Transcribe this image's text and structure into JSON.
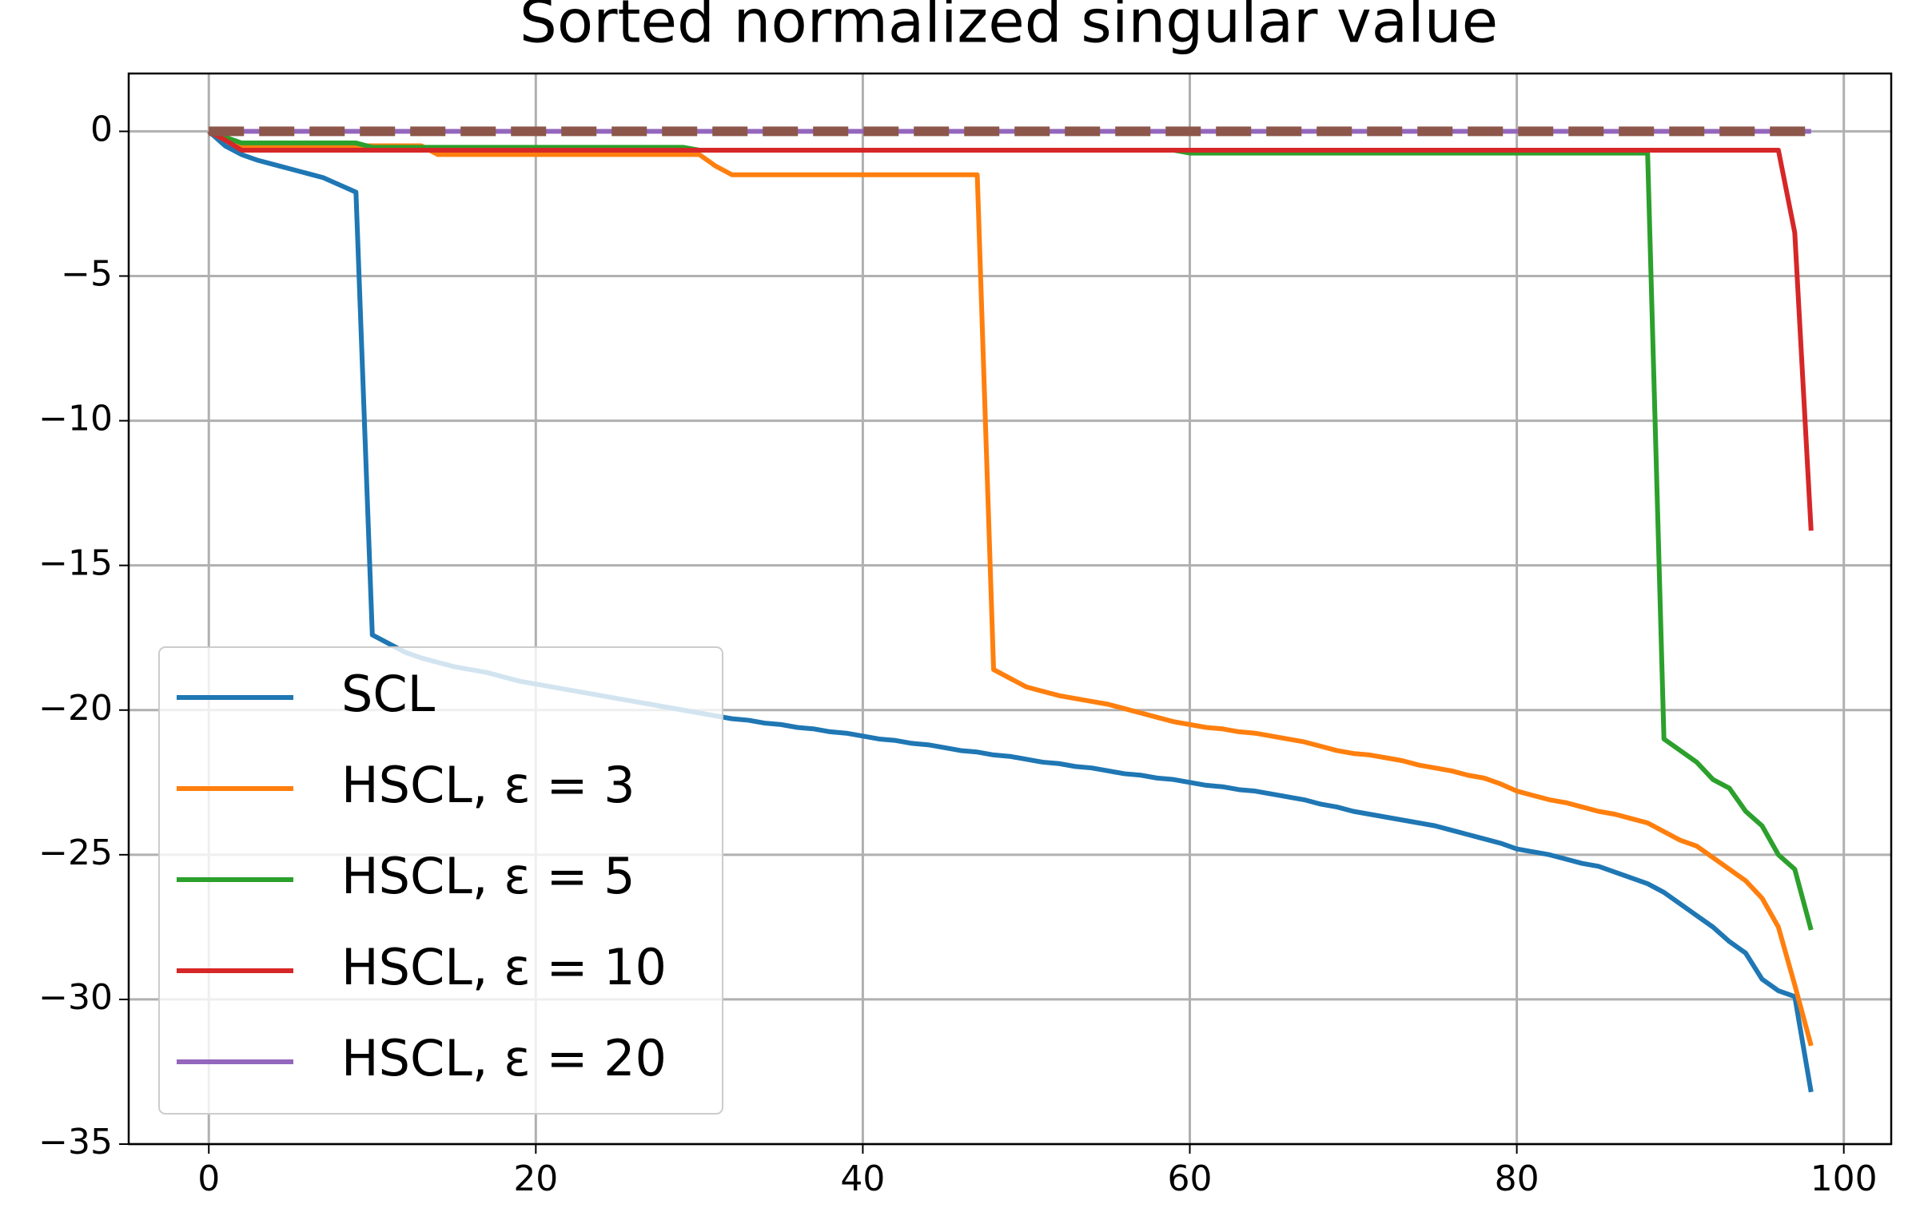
{
  "chart_data": {
    "type": "line",
    "title": "Sorted normalized singular value",
    "x": [
      0,
      1,
      2,
      3,
      4,
      5,
      6,
      7,
      8,
      9,
      10,
      11,
      12,
      13,
      14,
      15,
      16,
      17,
      18,
      19,
      20,
      21,
      22,
      23,
      24,
      25,
      26,
      27,
      28,
      29,
      30,
      31,
      32,
      33,
      34,
      35,
      36,
      37,
      38,
      39,
      40,
      41,
      42,
      43,
      44,
      45,
      46,
      47,
      48,
      49,
      50,
      51,
      52,
      53,
      54,
      55,
      56,
      57,
      58,
      59,
      60,
      61,
      62,
      63,
      64,
      65,
      66,
      67,
      68,
      69,
      70,
      71,
      72,
      73,
      74,
      75,
      76,
      77,
      78,
      79,
      80,
      81,
      82,
      83,
      84,
      85,
      86,
      87,
      88,
      89,
      90,
      91,
      92,
      93,
      94,
      95,
      96,
      97,
      98
    ],
    "series": [
      {
        "name": "SCL",
        "color": "#1f77b4",
        "values": [
          0,
          -0.5,
          -0.8,
          -1.0,
          -1.15,
          -1.3,
          -1.45,
          -1.6,
          -1.85,
          -2.1,
          -17.4,
          -17.7,
          -18.0,
          -18.2,
          -18.35,
          -18.5,
          -18.6,
          -18.7,
          -18.85,
          -19.0,
          -19.1,
          -19.2,
          -19.3,
          -19.4,
          -19.5,
          -19.6,
          -19.7,
          -19.8,
          -19.9,
          -20.0,
          -20.1,
          -20.2,
          -20.3,
          -20.35,
          -20.45,
          -20.5,
          -20.6,
          -20.65,
          -20.75,
          -20.8,
          -20.9,
          -21.0,
          -21.05,
          -21.15,
          -21.2,
          -21.3,
          -21.4,
          -21.45,
          -21.55,
          -21.6,
          -21.7,
          -21.8,
          -21.85,
          -21.95,
          -22.0,
          -22.1,
          -22.2,
          -22.25,
          -22.35,
          -22.4,
          -22.5,
          -22.6,
          -22.65,
          -22.75,
          -22.8,
          -22.9,
          -23.0,
          -23.1,
          -23.25,
          -23.35,
          -23.5,
          -23.6,
          -23.7,
          -23.8,
          -23.9,
          -24.0,
          -24.15,
          -24.3,
          -24.45,
          -24.6,
          -24.8,
          -24.9,
          -25.0,
          -25.15,
          -25.3,
          -25.4,
          -25.6,
          -25.8,
          -26.0,
          -26.3,
          -26.7,
          -27.1,
          -27.5,
          -28.0,
          -28.4,
          -29.3,
          -29.7,
          -29.9,
          -33.2
        ]
      },
      {
        "name": "HSCL, ε = 3",
        "color": "#ff7f0e",
        "values": [
          0,
          -0.3,
          -0.5,
          -0.5,
          -0.5,
          -0.5,
          -0.5,
          -0.5,
          -0.5,
          -0.5,
          -0.5,
          -0.5,
          -0.5,
          -0.5,
          -0.8,
          -0.8,
          -0.8,
          -0.8,
          -0.8,
          -0.8,
          -0.8,
          -0.8,
          -0.8,
          -0.8,
          -0.8,
          -0.8,
          -0.8,
          -0.8,
          -0.8,
          -0.8,
          -0.8,
          -1.2,
          -1.5,
          -1.5,
          -1.5,
          -1.5,
          -1.5,
          -1.5,
          -1.5,
          -1.5,
          -1.5,
          -1.5,
          -1.5,
          -1.5,
          -1.5,
          -1.5,
          -1.5,
          -1.5,
          -18.6,
          -18.9,
          -19.2,
          -19.35,
          -19.5,
          -19.6,
          -19.7,
          -19.8,
          -19.95,
          -20.1,
          -20.25,
          -20.4,
          -20.5,
          -20.6,
          -20.65,
          -20.75,
          -20.8,
          -20.9,
          -21.0,
          -21.1,
          -21.25,
          -21.4,
          -21.5,
          -21.55,
          -21.65,
          -21.75,
          -21.9,
          -22.0,
          -22.1,
          -22.25,
          -22.35,
          -22.55,
          -22.8,
          -22.95,
          -23.1,
          -23.2,
          -23.35,
          -23.5,
          -23.6,
          -23.75,
          -23.9,
          -24.2,
          -24.5,
          -24.7,
          -25.1,
          -25.5,
          -25.9,
          -26.5,
          -27.5,
          -29.5,
          -31.6
        ]
      },
      {
        "name": "HSCL, ε = 5",
        "color": "#2ca02c",
        "values": [
          0,
          -0.2,
          -0.4,
          -0.4,
          -0.4,
          -0.4,
          -0.4,
          -0.4,
          -0.4,
          -0.4,
          -0.55,
          -0.55,
          -0.55,
          -0.55,
          -0.55,
          -0.55,
          -0.55,
          -0.55,
          -0.55,
          -0.55,
          -0.55,
          -0.55,
          -0.55,
          -0.55,
          -0.55,
          -0.55,
          -0.55,
          -0.55,
          -0.55,
          -0.55,
          -0.65,
          -0.65,
          -0.65,
          -0.65,
          -0.65,
          -0.65,
          -0.65,
          -0.65,
          -0.65,
          -0.65,
          -0.65,
          -0.65,
          -0.65,
          -0.65,
          -0.65,
          -0.65,
          -0.65,
          -0.65,
          -0.65,
          -0.65,
          -0.65,
          -0.65,
          -0.65,
          -0.65,
          -0.65,
          -0.65,
          -0.65,
          -0.65,
          -0.65,
          -0.65,
          -0.75,
          -0.75,
          -0.75,
          -0.75,
          -0.75,
          -0.75,
          -0.75,
          -0.75,
          -0.75,
          -0.75,
          -0.75,
          -0.75,
          -0.75,
          -0.75,
          -0.75,
          -0.75,
          -0.75,
          -0.75,
          -0.75,
          -0.75,
          -0.75,
          -0.75,
          -0.75,
          -0.75,
          -0.75,
          -0.75,
          -0.75,
          -0.75,
          -0.75,
          -21.0,
          -21.4,
          -21.8,
          -22.4,
          -22.7,
          -23.5,
          -24.0,
          -25.0,
          -25.5,
          -27.6
        ]
      },
      {
        "name": "HSCL, ε = 10",
        "color": "#d62728",
        "values": [
          0,
          -0.3,
          -0.65,
          -0.65,
          -0.65,
          -0.65,
          -0.65,
          -0.65,
          -0.65,
          -0.65,
          -0.65,
          -0.65,
          -0.65,
          -0.65,
          -0.65,
          -0.65,
          -0.65,
          -0.65,
          -0.65,
          -0.65,
          -0.65,
          -0.65,
          -0.65,
          -0.65,
          -0.65,
          -0.65,
          -0.65,
          -0.65,
          -0.65,
          -0.65,
          -0.65,
          -0.65,
          -0.65,
          -0.65,
          -0.65,
          -0.65,
          -0.65,
          -0.65,
          -0.65,
          -0.65,
          -0.65,
          -0.65,
          -0.65,
          -0.65,
          -0.65,
          -0.65,
          -0.65,
          -0.65,
          -0.65,
          -0.65,
          -0.65,
          -0.65,
          -0.65,
          -0.65,
          -0.65,
          -0.65,
          -0.65,
          -0.65,
          -0.65,
          -0.65,
          -0.65,
          -0.65,
          -0.65,
          -0.65,
          -0.65,
          -0.65,
          -0.65,
          -0.65,
          -0.65,
          -0.65,
          -0.65,
          -0.65,
          -0.65,
          -0.65,
          -0.65,
          -0.65,
          -0.65,
          -0.65,
          -0.65,
          -0.65,
          -0.65,
          -0.65,
          -0.65,
          -0.65,
          -0.65,
          -0.65,
          -0.65,
          -0.65,
          -0.65,
          -0.65,
          -0.65,
          -0.65,
          -0.65,
          -0.65,
          -0.65,
          -0.65,
          -0.65,
          -3.5,
          -13.8
        ]
      },
      {
        "name": "HSCL, ε = 20",
        "color": "#9467bd",
        "values": [
          0,
          0,
          0,
          0,
          0,
          0,
          0,
          0,
          0,
          0,
          0,
          0,
          0,
          0,
          0,
          0,
          0,
          0,
          0,
          0,
          0,
          0,
          0,
          0,
          0,
          0,
          0,
          0,
          0,
          0,
          0,
          0,
          0,
          0,
          0,
          0,
          0,
          0,
          0,
          0,
          0,
          0,
          0,
          0,
          0,
          0,
          0,
          0,
          0,
          0,
          0,
          0,
          0,
          0,
          0,
          0,
          0,
          0,
          0,
          0,
          0,
          0,
          0,
          0,
          0,
          0,
          0,
          0,
          0,
          0,
          0,
          0,
          0,
          0,
          0,
          0,
          0,
          0,
          0,
          0,
          0,
          0,
          0,
          0,
          0,
          0,
          0,
          0,
          0,
          0,
          0,
          0,
          0,
          0,
          0,
          0,
          0,
          0,
          0
        ]
      },
      {
        "color": "#8c564b",
        "linestyle": "dashed",
        "values": [
          0,
          0,
          0,
          0,
          0,
          0,
          0,
          0,
          0,
          0,
          0,
          0,
          0,
          0,
          0,
          0,
          0,
          0,
          0,
          0,
          0,
          0,
          0,
          0,
          0,
          0,
          0,
          0,
          0,
          0,
          0,
          0,
          0,
          0,
          0,
          0,
          0,
          0,
          0,
          0,
          0,
          0,
          0,
          0,
          0,
          0,
          0,
          0,
          0,
          0,
          0,
          0,
          0,
          0,
          0,
          0,
          0,
          0,
          0,
          0,
          0,
          0,
          0,
          0,
          0,
          0,
          0,
          0,
          0,
          0,
          0,
          0,
          0,
          0,
          0,
          0,
          0,
          0,
          0,
          0,
          0,
          0,
          0,
          0,
          0,
          0,
          0,
          0,
          0,
          0,
          0,
          0,
          0,
          0,
          0,
          0,
          0,
          0,
          0
        ]
      }
    ],
    "xlim": [
      -4.9,
      102.9
    ],
    "ylim": [
      -35,
      2
    ],
    "xticks": [
      0,
      20,
      40,
      60,
      80,
      100
    ],
    "yticks": [
      {
        "value": -35,
        "label": "−35"
      },
      {
        "value": -30,
        "label": "−30"
      },
      {
        "value": -25,
        "label": "−25"
      },
      {
        "value": -20,
        "label": "−20"
      },
      {
        "value": -15,
        "label": "−15"
      },
      {
        "value": -10,
        "label": "−10"
      },
      {
        "value": -5,
        "label": "−5"
      },
      0
    ],
    "grid": true,
    "legend": "lower left"
  }
}
